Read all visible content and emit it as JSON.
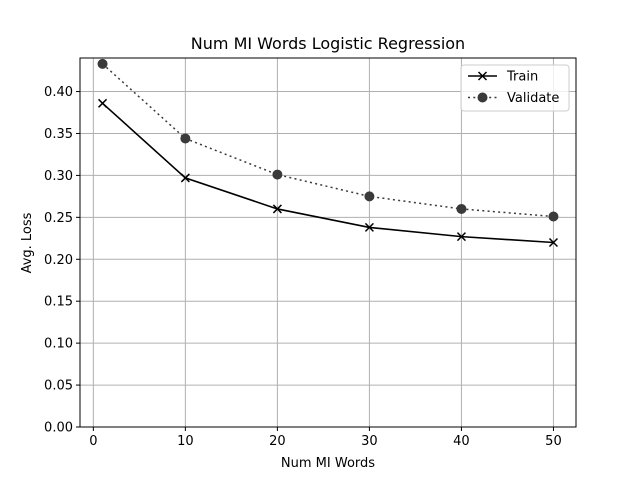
{
  "chart_data": {
    "type": "line",
    "title": "Num MI Words Logistic Regression",
    "xlabel": "Num MI Words",
    "ylabel": "Avg. Loss",
    "x": [
      1,
      10,
      20,
      30,
      40,
      50
    ],
    "xlim": [
      -1.45,
      52.45
    ],
    "ylim": [
      0.0,
      0.44
    ],
    "xticks": [
      0,
      10,
      20,
      30,
      40,
      50
    ],
    "yticks": [
      0.0,
      0.05,
      0.1,
      0.15,
      0.2,
      0.25,
      0.3,
      0.35,
      0.4
    ],
    "ytick_labels": [
      "0.00",
      "0.05",
      "0.10",
      "0.15",
      "0.20",
      "0.25",
      "0.30",
      "0.35",
      "0.40"
    ],
    "grid": true,
    "legend_position": "top-right",
    "series": [
      {
        "name": "Train",
        "values": [
          0.386,
          0.297,
          0.26,
          0.238,
          0.227,
          0.22
        ],
        "color": "#000000",
        "line_style": "solid",
        "marker": "x"
      },
      {
        "name": "Validate",
        "values": [
          0.433,
          0.344,
          0.301,
          0.275,
          0.26,
          0.251
        ],
        "color": "#3a3a3a",
        "line_style": "dotted",
        "marker": "circle"
      }
    ]
  }
}
